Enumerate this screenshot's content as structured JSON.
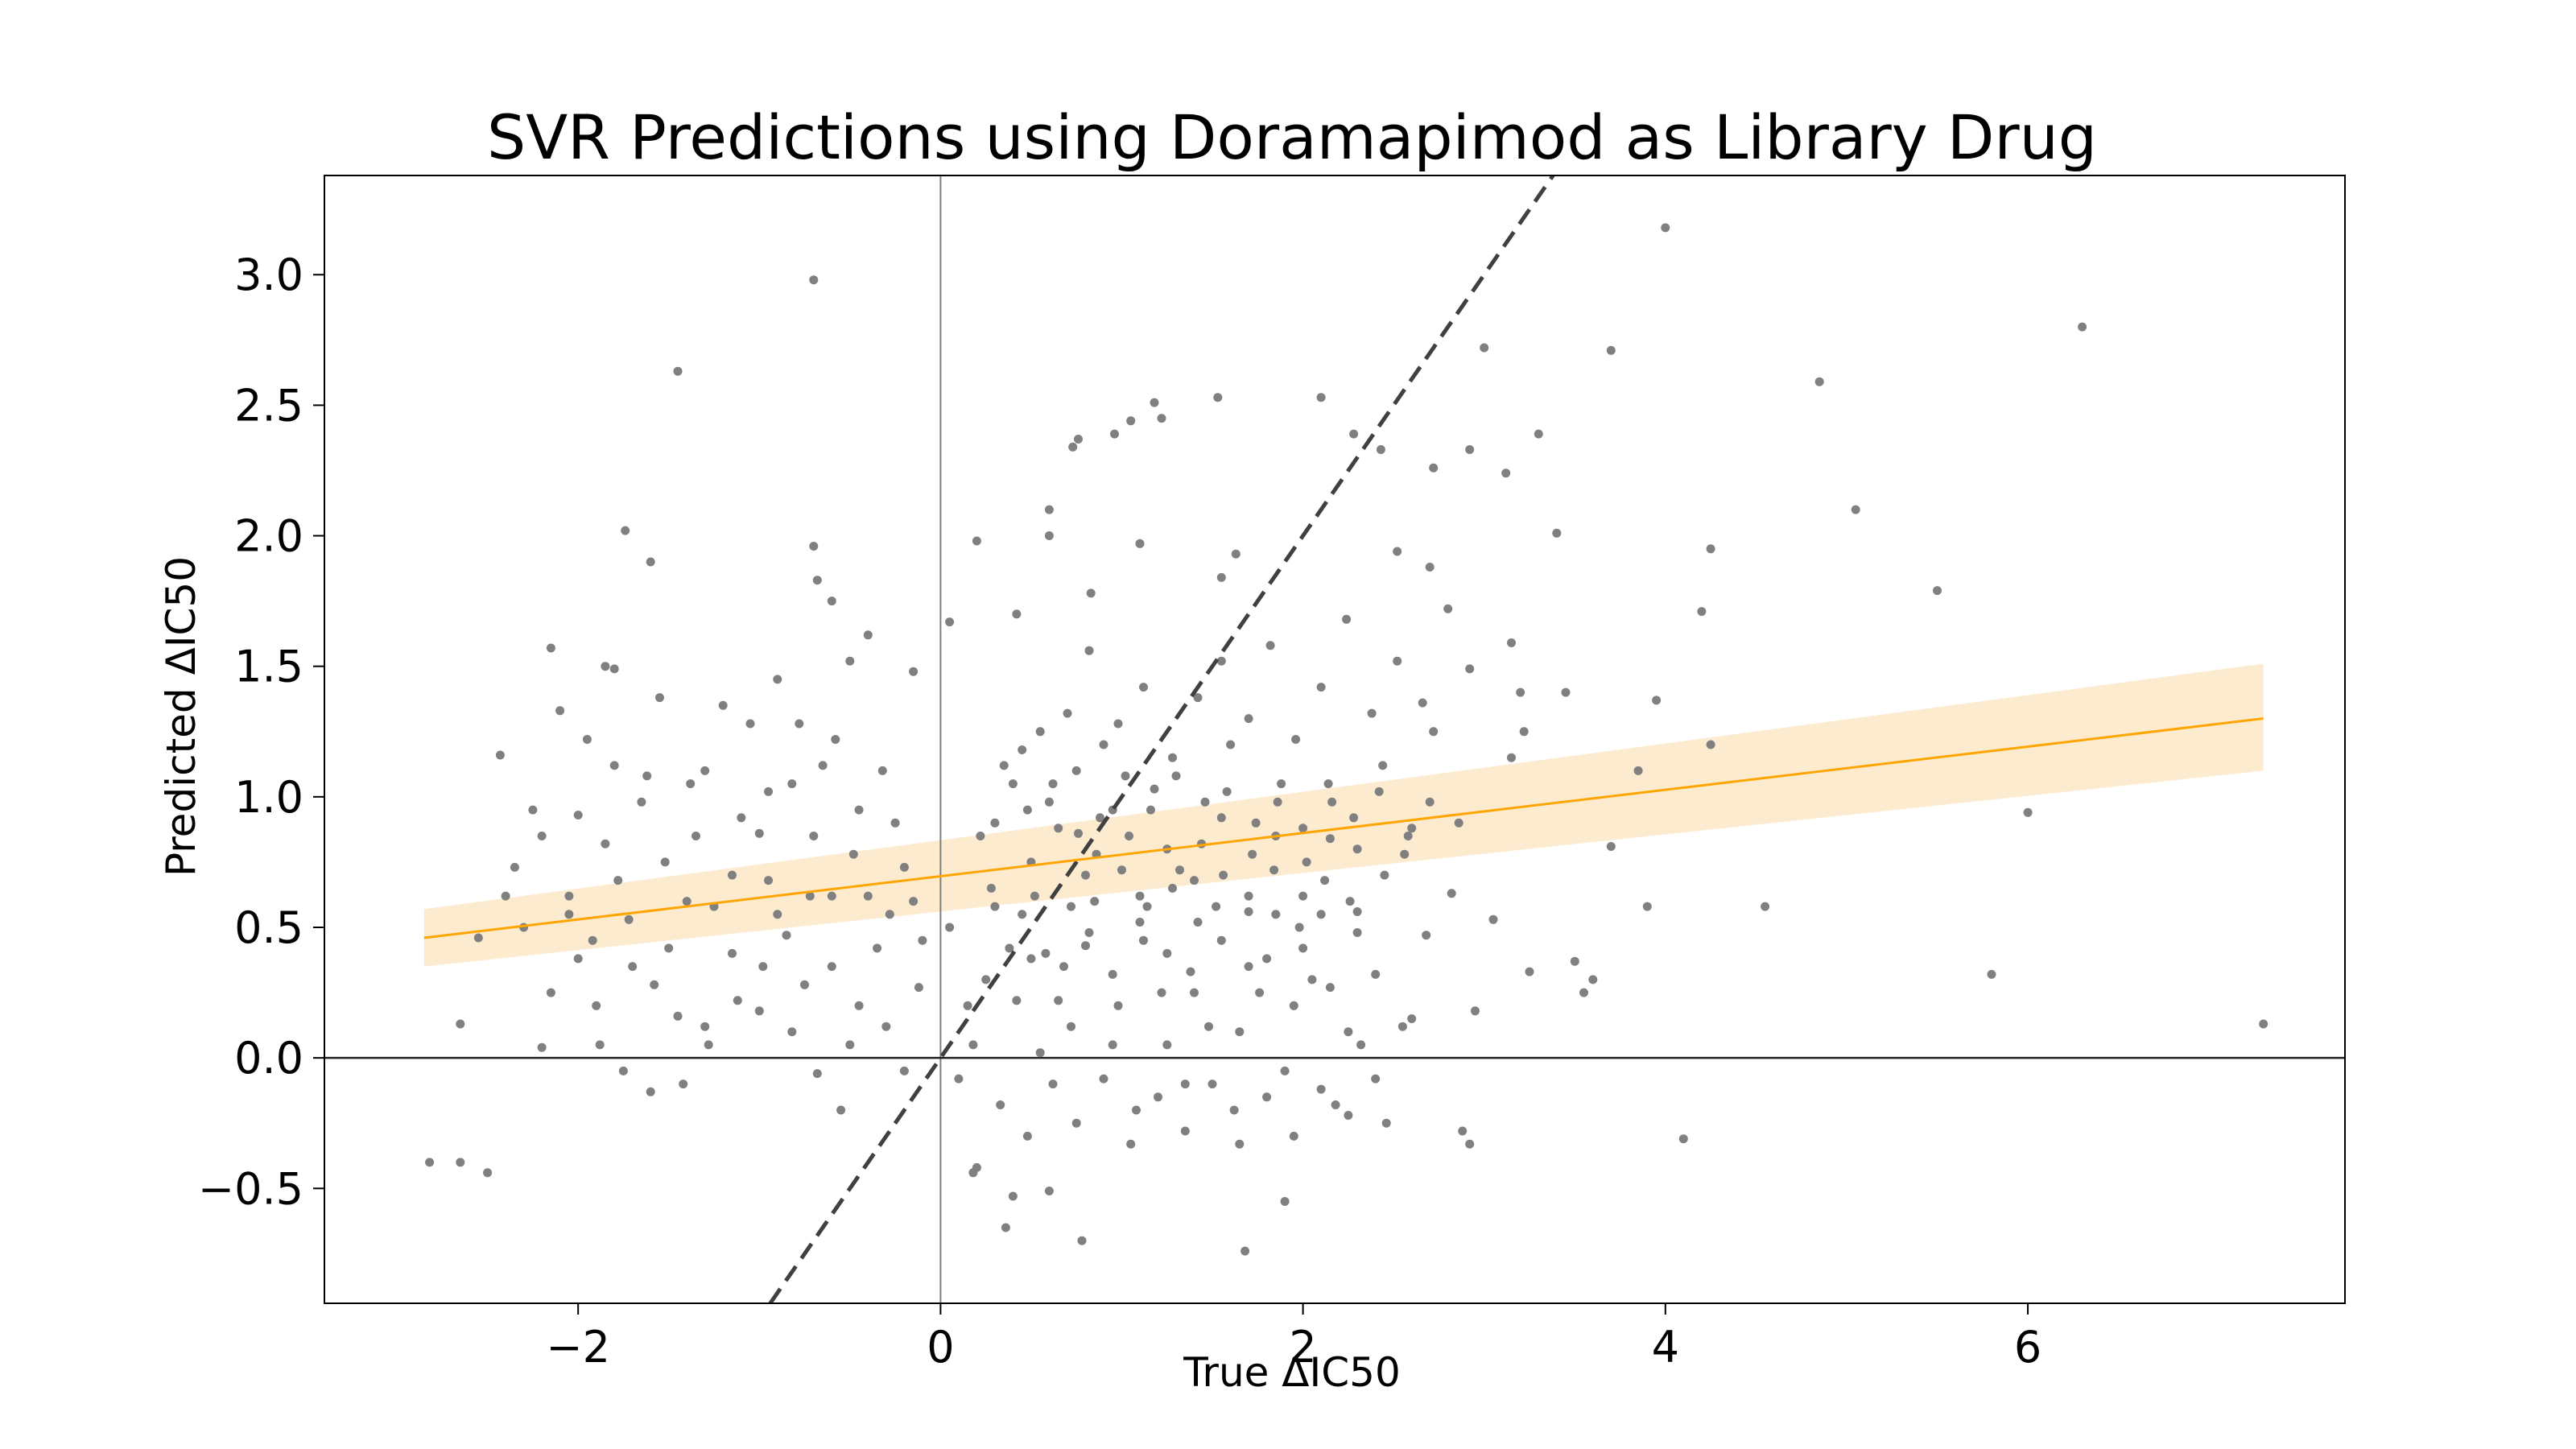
{
  "chart_data": {
    "type": "scatter",
    "title": "SVR Predictions using Doramapimod as Library Drug",
    "xlabel": "True ΔIC50",
    "ylabel": "Predicted ΔIC50",
    "xlim": [
      -3.4,
      7.75
    ],
    "ylim": [
      -0.94,
      3.38
    ],
    "x_ticks": [
      {
        "value": -2,
        "label": "−2"
      },
      {
        "value": 0,
        "label": "0"
      },
      {
        "value": 2,
        "label": "2"
      },
      {
        "value": 4,
        "label": "4"
      },
      {
        "value": 6,
        "label": "6"
      }
    ],
    "y_ticks": [
      {
        "value": -0.5,
        "label": "−0.5"
      },
      {
        "value": 0.0,
        "label": "0.0"
      },
      {
        "value": 0.5,
        "label": "0.5"
      },
      {
        "value": 1.0,
        "label": "1.0"
      },
      {
        "value": 1.5,
        "label": "1.5"
      },
      {
        "value": 2.0,
        "label": "2.0"
      },
      {
        "value": 2.5,
        "label": "2.5"
      },
      {
        "value": 3.0,
        "label": "3.0"
      }
    ],
    "grid": false,
    "reference_lines": {
      "x_zero": true,
      "y_zero": true,
      "identity_dashed": true
    },
    "regression": {
      "x": [
        -2.85,
        7.3
      ],
      "y": [
        0.46,
        1.3
      ],
      "ci_lower": [
        0.35,
        1.1
      ],
      "ci_upper": [
        0.57,
        1.51
      ],
      "color": "#ffa500",
      "band_color": "#fdebd0"
    },
    "points_color": "#808080",
    "points": [
      [
        -0.7,
        2.98
      ],
      [
        -1.45,
        2.63
      ],
      [
        4.0,
        3.18
      ],
      [
        6.3,
        2.8
      ],
      [
        4.85,
        2.59
      ],
      [
        3.7,
        2.71
      ],
      [
        5.05,
        2.1
      ],
      [
        5.5,
        1.79
      ],
      [
        4.25,
        1.95
      ],
      [
        4.2,
        1.71
      ],
      [
        3.95,
        1.37
      ],
      [
        4.25,
        1.2
      ],
      [
        3.85,
        1.1
      ],
      [
        3.7,
        0.81
      ],
      [
        6.0,
        0.94
      ],
      [
        4.55,
        0.58
      ],
      [
        3.9,
        0.58
      ],
      [
        5.8,
        0.32
      ],
      [
        7.3,
        0.13
      ],
      [
        4.1,
        -0.31
      ],
      [
        3.55,
        0.25
      ],
      [
        3.4,
        2.01
      ],
      [
        3.0,
        2.72
      ],
      [
        2.92,
        2.33
      ],
      [
        3.12,
        2.24
      ],
      [
        3.3,
        2.39
      ],
      [
        2.72,
        2.26
      ],
      [
        2.43,
        2.33
      ],
      [
        2.28,
        2.39
      ],
      [
        2.1,
        2.53
      ],
      [
        1.53,
        2.53
      ],
      [
        1.18,
        2.51
      ],
      [
        1.05,
        2.44
      ],
      [
        1.22,
        2.45
      ],
      [
        0.73,
        2.34
      ],
      [
        0.76,
        2.37
      ],
      [
        0.96,
        2.39
      ],
      [
        1.63,
        1.93
      ],
      [
        0.6,
        2.1
      ],
      [
        0.2,
        1.98
      ],
      [
        0.6,
        2.0
      ],
      [
        1.1,
        1.97
      ],
      [
        1.55,
        1.84
      ],
      [
        0.42,
        1.7
      ],
      [
        0.83,
        1.78
      ],
      [
        -1.74,
        2.02
      ],
      [
        -1.6,
        1.9
      ],
      [
        -0.7,
        1.96
      ],
      [
        -0.68,
        1.83
      ],
      [
        -0.6,
        1.75
      ],
      [
        -2.15,
        1.57
      ],
      [
        -1.85,
        1.5
      ],
      [
        -1.8,
        1.49
      ],
      [
        -0.4,
        1.62
      ],
      [
        0.05,
        1.67
      ],
      [
        -0.15,
        1.48
      ],
      [
        3.45,
        1.4
      ],
      [
        3.2,
        1.4
      ],
      [
        3.15,
        1.59
      ],
      [
        2.92,
        1.49
      ],
      [
        2.7,
        1.88
      ],
      [
        2.52,
        1.94
      ],
      [
        3.6,
        0.3
      ],
      [
        3.5,
        0.37
      ],
      [
        2.95,
        0.18
      ],
      [
        3.25,
        0.33
      ],
      [
        3.15,
        1.15
      ],
      [
        3.22,
        1.25
      ],
      [
        2.88,
        -0.28
      ],
      [
        2.92,
        -0.33
      ],
      [
        1.9,
        -0.55
      ],
      [
        1.68,
        -0.74
      ],
      [
        0.78,
        -0.7
      ],
      [
        0.6,
        -0.51
      ],
      [
        0.4,
        -0.53
      ],
      [
        0.36,
        -0.65
      ],
      [
        0.2,
        -0.42
      ],
      [
        0.18,
        -0.44
      ],
      [
        -2.65,
        -0.4
      ],
      [
        -2.5,
        -0.44
      ],
      [
        -2.82,
        -0.4
      ],
      [
        -2.65,
        0.13
      ],
      [
        -2.35,
        0.73
      ],
      [
        -2.43,
        1.16
      ],
      [
        -2.55,
        0.46
      ],
      [
        -2.2,
        0.04
      ],
      [
        -2.1,
        1.33
      ],
      [
        -2.0,
        0.93
      ],
      [
        -1.85,
        0.82
      ],
      [
        -1.72,
        0.53
      ],
      [
        -1.58,
        0.28
      ],
      [
        -1.45,
        0.16
      ],
      [
        -1.3,
        0.12
      ],
      [
        -1.15,
        0.7
      ],
      [
        -1.0,
        0.86
      ],
      [
        -0.85,
        0.47
      ],
      [
        -0.75,
        0.28
      ],
      [
        -0.6,
        0.35
      ],
      [
        -0.45,
        0.2
      ],
      [
        -0.3,
        0.12
      ],
      [
        -0.2,
        -0.05
      ],
      [
        -0.1,
        0.45
      ],
      [
        0.1,
        -0.08
      ],
      [
        0.25,
        0.3
      ],
      [
        0.45,
        0.55
      ],
      [
        0.58,
        0.4
      ],
      [
        0.72,
        0.12
      ],
      [
        0.85,
        0.6
      ],
      [
        0.98,
        0.2
      ],
      [
        1.12,
        0.45
      ],
      [
        1.25,
        0.05
      ],
      [
        1.38,
        0.33
      ],
      [
        1.52,
        0.58
      ],
      [
        1.65,
        0.1
      ],
      [
        1.8,
        0.38
      ],
      [
        1.95,
        0.2
      ],
      [
        2.1,
        0.55
      ],
      [
        2.25,
        0.1
      ],
      [
        2.4,
        0.32
      ],
      [
        2.55,
        0.12
      ],
      [
        2.68,
        0.47
      ],
      [
        2.82,
        0.63
      ],
      [
        3.05,
        0.53
      ],
      [
        -2.2,
        0.85
      ],
      [
        -2.0,
        0.38
      ],
      [
        -1.9,
        0.2
      ],
      [
        -1.75,
        -0.05
      ],
      [
        -1.6,
        -0.13
      ],
      [
        -1.42,
        -0.1
      ],
      [
        -1.28,
        0.05
      ],
      [
        -1.12,
        0.22
      ],
      [
        -0.98,
        0.35
      ],
      [
        -0.82,
        0.1
      ],
      [
        -0.68,
        -0.06
      ],
      [
        -0.55,
        -0.2
      ],
      [
        -0.4,
        0.62
      ],
      [
        -0.28,
        0.55
      ],
      [
        -0.12,
        0.27
      ],
      [
        0.05,
        0.5
      ],
      [
        0.22,
        0.85
      ],
      [
        0.35,
        1.12
      ],
      [
        0.48,
        0.95
      ],
      [
        0.62,
        1.05
      ],
      [
        0.76,
        0.86
      ],
      [
        0.9,
        1.2
      ],
      [
        1.04,
        0.85
      ],
      [
        1.18,
        1.03
      ],
      [
        1.32,
        0.72
      ],
      [
        1.46,
        0.98
      ],
      [
        1.6,
        1.2
      ],
      [
        1.74,
        0.9
      ],
      [
        1.88,
        1.05
      ],
      [
        2.02,
        0.75
      ],
      [
        2.16,
        0.98
      ],
      [
        2.3,
        0.8
      ],
      [
        2.44,
        1.12
      ],
      [
        2.58,
        0.85
      ],
      [
        2.72,
        1.25
      ],
      [
        2.86,
        0.9
      ],
      [
        -2.3,
        0.5
      ],
      [
        -2.15,
        0.25
      ],
      [
        -2.05,
        0.62
      ],
      [
        -1.92,
        0.45
      ],
      [
        -1.78,
        0.68
      ],
      [
        -1.65,
        0.98
      ],
      [
        -1.52,
        0.75
      ],
      [
        -1.38,
        1.05
      ],
      [
        -1.25,
        0.58
      ],
      [
        -1.1,
        0.92
      ],
      [
        -0.95,
        0.68
      ],
      [
        -0.82,
        1.05
      ],
      [
        -0.7,
        0.85
      ],
      [
        -0.58,
        1.22
      ],
      [
        -0.45,
        0.95
      ],
      [
        -0.32,
        1.1
      ],
      [
        -0.2,
        0.73
      ],
      [
        0.28,
        0.65
      ],
      [
        0.42,
        0.22
      ],
      [
        0.55,
        0.02
      ],
      [
        0.68,
        0.35
      ],
      [
        0.82,
        0.48
      ],
      [
        0.95,
        0.05
      ],
      [
        1.08,
        -0.2
      ],
      [
        1.22,
        0.25
      ],
      [
        1.35,
        -0.1
      ],
      [
        1.48,
        0.12
      ],
      [
        1.62,
        -0.2
      ],
      [
        1.76,
        0.25
      ],
      [
        1.9,
        -0.05
      ],
      [
        2.05,
        0.3
      ],
      [
        2.18,
        -0.18
      ],
      [
        2.32,
        0.05
      ],
      [
        2.46,
        -0.25
      ],
      [
        2.6,
        0.15
      ],
      [
        -1.8,
        1.12
      ],
      [
        -1.55,
        1.38
      ],
      [
        -1.3,
        1.1
      ],
      [
        -1.05,
        1.28
      ],
      [
        -0.9,
        1.45
      ],
      [
        -0.78,
        1.28
      ],
      [
        -0.65,
        1.12
      ],
      [
        -0.5,
        1.52
      ],
      [
        0.4,
        1.05
      ],
      [
        0.55,
        1.25
      ],
      [
        0.7,
        1.32
      ],
      [
        0.82,
        1.56
      ],
      [
        0.98,
        1.28
      ],
      [
        1.12,
        1.42
      ],
      [
        1.28,
        1.15
      ],
      [
        1.42,
        1.38
      ],
      [
        1.55,
        1.52
      ],
      [
        1.7,
        1.3
      ],
      [
        1.82,
        1.58
      ],
      [
        1.96,
        1.22
      ],
      [
        2.1,
        1.42
      ],
      [
        2.24,
        1.68
      ],
      [
        2.38,
        1.32
      ],
      [
        2.52,
        1.52
      ],
      [
        2.66,
        1.36
      ],
      [
        2.8,
        1.72
      ],
      [
        0.5,
        0.75
      ],
      [
        0.65,
        0.88
      ],
      [
        0.8,
        0.7
      ],
      [
        0.95,
        0.95
      ],
      [
        1.1,
        0.62
      ],
      [
        1.25,
        0.8
      ],
      [
        1.4,
        0.68
      ],
      [
        1.55,
        0.92
      ],
      [
        1.7,
        0.56
      ],
      [
        1.85,
        0.85
      ],
      [
        2.0,
        0.62
      ],
      [
        2.15,
        0.84
      ],
      [
        2.3,
        0.56
      ],
      [
        2.45,
        0.7
      ],
      [
        2.6,
        0.88
      ],
      [
        0.3,
        0.58
      ],
      [
        0.5,
        0.38
      ],
      [
        0.65,
        0.22
      ],
      [
        0.8,
        0.43
      ],
      [
        0.95,
        0.32
      ],
      [
        1.1,
        0.52
      ],
      [
        1.25,
        0.4
      ],
      [
        1.4,
        0.25
      ],
      [
        1.55,
        0.45
      ],
      [
        1.7,
        0.35
      ],
      [
        1.85,
        0.55
      ],
      [
        2.0,
        0.42
      ],
      [
        2.15,
        0.27
      ],
      [
        2.3,
        0.48
      ],
      [
        -2.05,
        0.55
      ],
      [
        -1.7,
        0.35
      ],
      [
        -1.4,
        0.6
      ],
      [
        -1.15,
        0.4
      ],
      [
        -0.9,
        0.55
      ],
      [
        -0.6,
        0.62
      ],
      [
        -0.35,
        0.42
      ],
      [
        -0.15,
        0.6
      ],
      [
        0.15,
        0.2
      ],
      [
        0.33,
        -0.18
      ],
      [
        0.48,
        -0.3
      ],
      [
        0.62,
        -0.1
      ],
      [
        0.75,
        -0.25
      ],
      [
        0.9,
        -0.08
      ],
      [
        1.05,
        -0.33
      ],
      [
        1.2,
        -0.15
      ],
      [
        1.35,
        -0.28
      ],
      [
        1.5,
        -0.1
      ],
      [
        1.65,
        -0.33
      ],
      [
        1.8,
        -0.15
      ],
      [
        1.95,
        -0.3
      ],
      [
        2.1,
        -0.12
      ],
      [
        2.25,
        -0.22
      ],
      [
        2.4,
        -0.08
      ],
      [
        -2.4,
        0.62
      ],
      [
        -2.25,
        0.95
      ],
      [
        -1.95,
        1.22
      ],
      [
        -1.62,
        1.08
      ],
      [
        -1.35,
        0.85
      ],
      [
        -1.2,
        1.35
      ],
      [
        -0.95,
        1.02
      ],
      [
        -0.72,
        0.62
      ],
      [
        -0.48,
        0.78
      ],
      [
        -0.25,
        0.9
      ],
      [
        0.3,
        0.9
      ],
      [
        0.45,
        1.18
      ],
      [
        0.6,
        0.98
      ],
      [
        0.75,
        1.1
      ],
      [
        0.88,
        0.92
      ],
      [
        1.02,
        1.08
      ],
      [
        1.16,
        0.95
      ],
      [
        1.3,
        1.08
      ],
      [
        1.44,
        0.82
      ],
      [
        1.58,
        1.02
      ],
      [
        1.72,
        0.78
      ],
      [
        1.86,
        0.98
      ],
      [
        2.0,
        0.88
      ],
      [
        2.14,
        1.05
      ],
      [
        2.28,
        0.92
      ],
      [
        2.42,
        1.02
      ],
      [
        2.56,
        0.78
      ],
      [
        2.7,
        0.98
      ],
      [
        -1.88,
        0.05
      ],
      [
        -1.5,
        0.42
      ],
      [
        -1.0,
        0.18
      ],
      [
        -0.5,
        0.05
      ],
      [
        0.18,
        0.05
      ],
      [
        0.38,
        0.42
      ],
      [
        0.52,
        0.62
      ],
      [
        0.72,
        0.58
      ],
      [
        0.86,
        0.78
      ],
      [
        1.0,
        0.72
      ],
      [
        1.14,
        0.58
      ],
      [
        1.28,
        0.65
      ],
      [
        1.42,
        0.52
      ],
      [
        1.56,
        0.7
      ],
      [
        1.7,
        0.62
      ],
      [
        1.84,
        0.72
      ],
      [
        1.98,
        0.5
      ],
      [
        2.12,
        0.68
      ],
      [
        2.26,
        0.6
      ]
    ]
  }
}
